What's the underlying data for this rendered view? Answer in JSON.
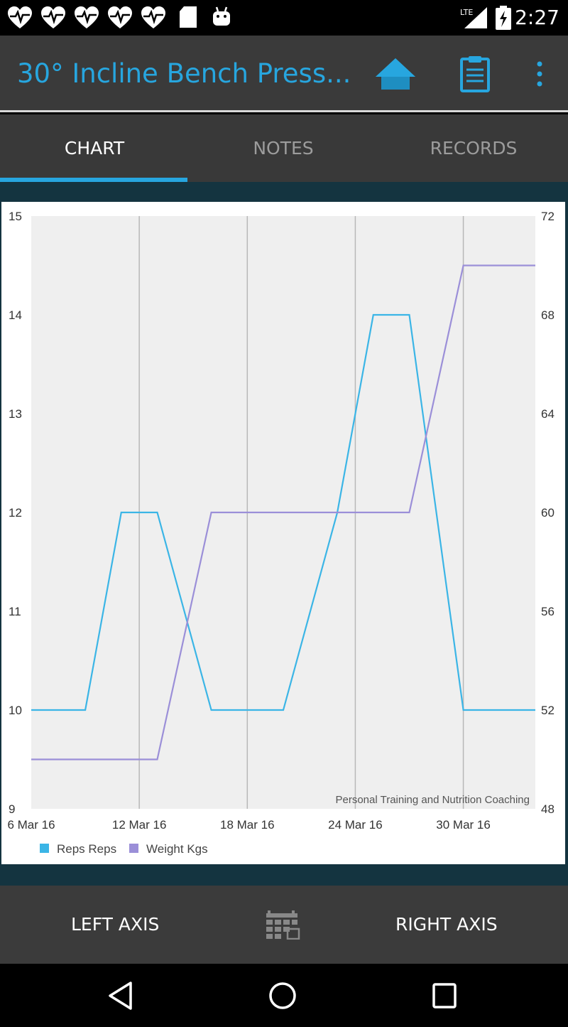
{
  "status_bar": {
    "time": "2:27",
    "notification_icons": [
      "heartbeat-icon",
      "heartbeat-icon",
      "heartbeat-icon",
      "heartbeat-icon",
      "heartbeat-icon",
      "sd-card-icon",
      "android-icon"
    ],
    "signal_label": "LTE"
  },
  "app_bar": {
    "title": "30° Incline Bench Press...",
    "actions": [
      "home-icon",
      "clipboard-icon",
      "overflow-menu-icon"
    ]
  },
  "tabs": [
    {
      "label": "CHART",
      "active": true
    },
    {
      "label": "NOTES",
      "active": false
    },
    {
      "label": "RECORDS",
      "active": false
    }
  ],
  "chart_data": {
    "type": "line",
    "x": [
      "2016-03-06",
      "2016-03-09",
      "2016-03-11",
      "2016-03-13",
      "2016-03-16",
      "2016-03-18",
      "2016-03-20",
      "2016-03-23",
      "2016-03-25",
      "2016-03-27",
      "2016-03-30",
      "2016-03-31",
      "2016-04-03"
    ],
    "x_ticks": [
      "6 Mar 16",
      "12 Mar 16",
      "18 Mar 16",
      "24 Mar 16",
      "30 Mar 16"
    ],
    "xlim": [
      "2016-03-06",
      "2016-04-03"
    ],
    "left_axis": {
      "ylim": [
        9,
        15
      ],
      "ticks": [
        "9",
        "10",
        "11",
        "12",
        "13",
        "14",
        "15"
      ]
    },
    "right_axis": {
      "ylim": [
        48,
        72
      ],
      "ticks": [
        "48",
        "52",
        "56",
        "60",
        "64",
        "68",
        "72"
      ]
    },
    "series": [
      {
        "name": "Reps Reps",
        "axis": "left",
        "color": "#3bb5e6",
        "values": [
          10,
          10,
          12,
          12,
          10,
          10,
          10,
          12,
          14,
          14,
          10,
          10,
          10
        ]
      },
      {
        "name": "Weight Kgs",
        "axis": "right",
        "color": "#9b8fd8",
        "values": [
          50,
          50,
          50,
          50,
          60,
          60,
          60,
          60,
          60,
          60,
          70,
          70,
          70
        ]
      }
    ],
    "watermark": "Personal Training and Nutrition Coaching",
    "grid": true,
    "legend_position": "bottom-left"
  },
  "bottom_bar": {
    "left_axis_label": "LEFT AXIS",
    "right_axis_label": "RIGHT AXIS",
    "calendar_icon": "calendar-icon"
  },
  "nav_bar": {
    "icons": [
      "back-icon",
      "home-circle-icon",
      "recents-icon"
    ]
  }
}
